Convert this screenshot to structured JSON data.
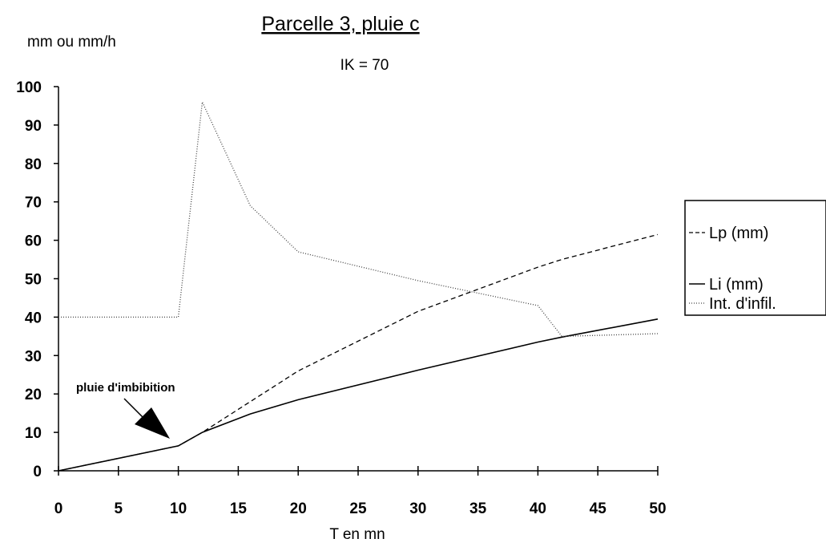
{
  "chart_data": {
    "type": "line",
    "title": "Parcelle 3, pluie c",
    "subtitle": "IK = 70",
    "xlabel": "T en mn",
    "ylabel": "mm ou mm/h",
    "xlim": [
      0,
      50
    ],
    "ylim": [
      0,
      100
    ],
    "xticks": [
      0,
      5,
      10,
      15,
      20,
      25,
      30,
      35,
      40,
      45,
      50
    ],
    "yticks": [
      0,
      10,
      20,
      30,
      40,
      50,
      60,
      70,
      80,
      90,
      100
    ],
    "grid": false,
    "legend_position": "right",
    "series": [
      {
        "name": "Lp (mm)",
        "style": "dashed",
        "points": [
          [
            0,
            0
          ],
          [
            10,
            6.5
          ],
          [
            12,
            10
          ],
          [
            16,
            18
          ],
          [
            20,
            26
          ],
          [
            30,
            41.5
          ],
          [
            40,
            53
          ],
          [
            42,
            55
          ],
          [
            50,
            61.5
          ]
        ]
      },
      {
        "name": "Li (mm)",
        "style": "solid",
        "points": [
          [
            0,
            0
          ],
          [
            10,
            6.5
          ],
          [
            12,
            10
          ],
          [
            16,
            14.8
          ],
          [
            20,
            18.5
          ],
          [
            30,
            26.2
          ],
          [
            40,
            33.5
          ],
          [
            42,
            34.8
          ],
          [
            50,
            39.5
          ]
        ]
      },
      {
        "name": "Int. d'infil.",
        "style": "dotted",
        "points": [
          [
            0,
            40
          ],
          [
            10,
            40
          ],
          [
            12,
            96
          ],
          [
            16,
            69
          ],
          [
            20,
            57
          ],
          [
            30,
            49.5
          ],
          [
            40,
            43
          ],
          [
            42,
            35
          ],
          [
            50,
            35.7
          ]
        ]
      }
    ],
    "annotation": {
      "text": "pluie d'imbibition",
      "arrow_to": [
        9,
        6
      ]
    }
  }
}
